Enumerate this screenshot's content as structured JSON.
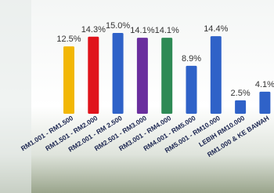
{
  "chart_data": {
    "type": "bar",
    "categories": [
      "RM1.001 - RM1.500",
      "RM1.501 - RM2.000",
      "RM2.001 - RM 2.500",
      "RM2.501 - RM3.000",
      "RM3.001 - RM4.000",
      "RM4.001 - RM5.000",
      "RM5.001 - RM10.000",
      "LEBIH RM10.000",
      "RM1.000 & KE BAWAH"
    ],
    "values": [
      12.5,
      14.3,
      15.0,
      14.1,
      14.1,
      8.9,
      14.4,
      2.5,
      4.1
    ],
    "value_labels": [
      "12.5%",
      "14.3%",
      "15.0%",
      "14.1%",
      "14.1%",
      "8.9%",
      "14.4%",
      "2.5%",
      "4.1%"
    ],
    "colors": [
      "#f2b705",
      "#e0141c",
      "#2f62c8",
      "#6a2f9e",
      "#2e8a55",
      "#2f62c8",
      "#2f62c8",
      "#2f62c8",
      "#2f62c8"
    ]
  }
}
